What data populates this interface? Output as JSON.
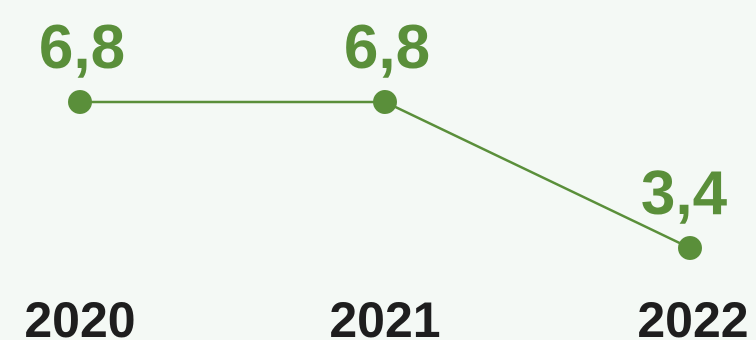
{
  "chart_data": {
    "type": "line",
    "categories": [
      "2020",
      "2021",
      "2022"
    ],
    "series": [
      {
        "values": [
          6.8,
          6.8,
          3.4
        ],
        "labels": [
          "6,8",
          "6,8",
          "3,4"
        ]
      }
    ],
    "ylim": [
      0,
      8
    ],
    "grid": false,
    "legend": "none",
    "colors": {
      "line": "#5a8f3a",
      "label": "#5a8f3a",
      "tick": "#1e1e1e",
      "background": "#f4f9f5"
    }
  }
}
